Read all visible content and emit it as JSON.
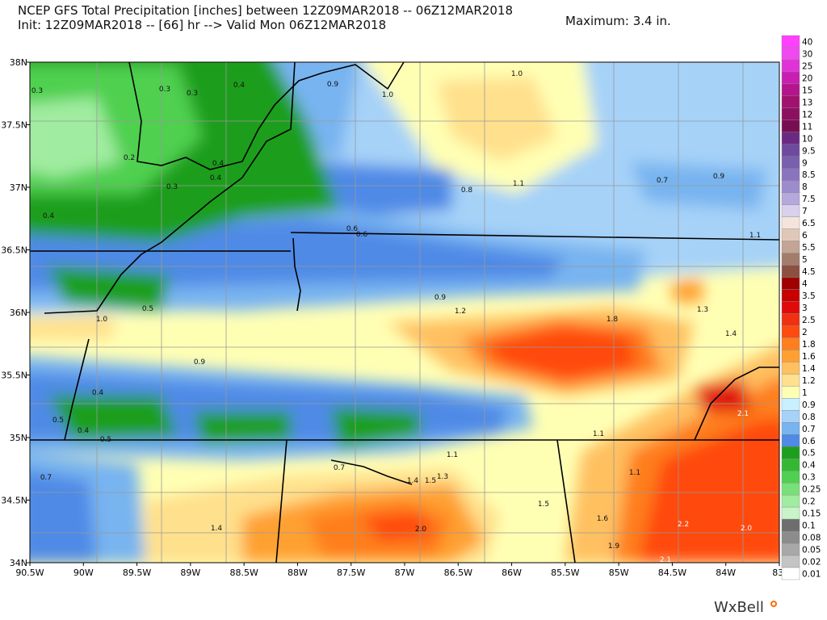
{
  "header": {
    "title_line1": "NCEP GFS Total Precipitation [inches] between 12Z09MAR2018 -- 06Z12MAR2018",
    "title_line2": "Init: 12Z09MAR2018 -- [66] hr --> Valid Mon 06Z12MAR2018",
    "maximum": "Maximum: 3.4 in."
  },
  "axes": {
    "lat_labels": [
      "38N",
      "37.5N",
      "37N",
      "36.5N",
      "36N",
      "35.5N",
      "35N",
      "34.5N",
      "34N"
    ],
    "lon_labels": [
      "90.5W",
      "90W",
      "89.5W",
      "89W",
      "88.5W",
      "88W",
      "87.5W",
      "87W",
      "86.5W",
      "86W",
      "85.5W",
      "85W",
      "84.5W",
      "84W",
      "83."
    ]
  },
  "colorbar": [
    {
      "label": "40",
      "color": "#ff40ff"
    },
    {
      "label": "30",
      "color": "#f049f0"
    },
    {
      "label": "25",
      "color": "#e032d8"
    },
    {
      "label": "20",
      "color": "#c81eb4"
    },
    {
      "label": "15",
      "color": "#b4148c"
    },
    {
      "label": "13",
      "color": "#a0126e"
    },
    {
      "label": "12",
      "color": "#8c1060"
    },
    {
      "label": "11",
      "color": "#780e52"
    },
    {
      "label": "10",
      "color": "#6a2a84"
    },
    {
      "label": "9.5",
      "color": "#6e4a9e"
    },
    {
      "label": "9",
      "color": "#7a5fae"
    },
    {
      "label": "8.5",
      "color": "#8a74be"
    },
    {
      "label": "8",
      "color": "#9c8cce"
    },
    {
      "label": "7.5",
      "color": "#b4a8dc"
    },
    {
      "label": "7",
      "color": "#d8d0ec"
    },
    {
      "label": "6.5",
      "color": "#f4e4dc"
    },
    {
      "label": "6",
      "color": "#e0c8b8"
    },
    {
      "label": "5.5",
      "color": "#c4a494"
    },
    {
      "label": "5",
      "color": "#a47c6c"
    },
    {
      "label": "4.5",
      "color": "#8c5040"
    },
    {
      "label": "4",
      "color": "#a00000"
    },
    {
      "label": "3.5",
      "color": "#c80000"
    },
    {
      "label": "3",
      "color": "#e00a0a"
    },
    {
      "label": "2.5",
      "color": "#f03010"
    },
    {
      "label": "2",
      "color": "#ff4a10"
    },
    {
      "label": "1.8",
      "color": "#ff7e1e"
    },
    {
      "label": "1.6",
      "color": "#ffa030"
    },
    {
      "label": "1.4",
      "color": "#ffc060"
    },
    {
      "label": "1.2",
      "color": "#ffe08c"
    },
    {
      "label": "1",
      "color": "#ffffb4"
    },
    {
      "label": "0.9",
      "color": "#c8f0ff"
    },
    {
      "label": "0.8",
      "color": "#a6d2f8"
    },
    {
      "label": "0.7",
      "color": "#78b4f0"
    },
    {
      "label": "0.6",
      "color": "#4f8ae6"
    },
    {
      "label": "0.5",
      "color": "#1e9e1e"
    },
    {
      "label": "0.4",
      "color": "#34b834"
    },
    {
      "label": "0.3",
      "color": "#50d050"
    },
    {
      "label": "0.25",
      "color": "#78e078"
    },
    {
      "label": "0.2",
      "color": "#a0eca0"
    },
    {
      "label": "0.15",
      "color": "#c8f4c8"
    },
    {
      "label": "0.1",
      "color": "#6e6e6e"
    },
    {
      "label": "0.08",
      "color": "#8c8c8c"
    },
    {
      "label": "0.05",
      "color": "#a8a8a8"
    },
    {
      "label": "0.02",
      "color": "#c4c4c4"
    },
    {
      "label": "0.01",
      "color": "#ffffff"
    }
  ],
  "point_labels": [
    "0.3",
    "0.3",
    "0.3",
    "0.4",
    "0.9",
    "1.0",
    "1.0",
    "0.2",
    "0.4",
    "0.4",
    "0.3",
    "0.4",
    "0.8",
    "1.1",
    "0.7",
    "0.9",
    "0.6",
    "0.6",
    "1.1",
    "0.5",
    "0.9",
    "1.2",
    "1.3",
    "1.8",
    "1.0",
    "1.4",
    "0.9",
    "0.4",
    "0.5",
    "0.4",
    "0.5",
    "2.1",
    "1.1",
    "1.1",
    "0.7",
    "1.4",
    "1.5",
    "1.3",
    "1.1",
    "0.7",
    "1.5",
    "1.6",
    "2.2",
    "2.0",
    "1.4",
    "2.0",
    "1.9",
    "2.1"
  ],
  "logo": "WxBell"
}
